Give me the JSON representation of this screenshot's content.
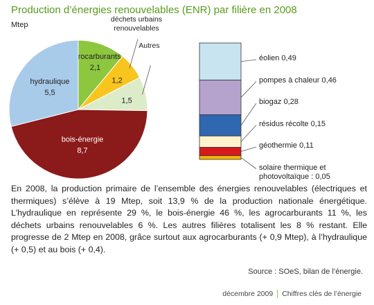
{
  "chart_data": [
    {
      "type": "pie",
      "title": "Production d’énergies renouvelables (ENR) par filière en 2008",
      "unit": "Mtep",
      "categories": [
        "agrocarburants",
        "déchets urbains renouvelables",
        "Autres",
        "bois-énergie",
        "hydraulique"
      ],
      "values": [
        2.1,
        1.2,
        1.5,
        8.7,
        5.5
      ],
      "value_labels": [
        "2,1",
        "1,2",
        "1,5",
        "8,7",
        "5,5"
      ],
      "colors": [
        "#8dc63f",
        "#f7c51e",
        "#dcecc9",
        "#8b1a1a",
        "#a9cbea"
      ]
    },
    {
      "type": "stacked-bar",
      "categories": [
        "éolien",
        "pompes à chaleur",
        "biogaz",
        "résidus récolte",
        "géothermie",
        "solaire thermique et photovoltaïque :"
      ],
      "values": [
        0.49,
        0.46,
        0.28,
        0.15,
        0.11,
        0.05
      ],
      "value_labels": [
        "0,49",
        "0,46",
        "0,28",
        "0,15",
        "0,11",
        "0,05"
      ],
      "colors": [
        "#c8e4f0",
        "#b5a2cd",
        "#2f67b1",
        "#fdf3cc",
        "#d7191c",
        "#f4b400"
      ]
    }
  ],
  "text": {
    "paragraph": "En 2008, la production primaire de l’ensemble des énergies renouvelables (électriques et thermiques) s’élève à 19 Mtep, soit 13,9 % de la production nationale énergétique. L’hydraulique en représente 29 %, le bois-énergie 46 %, les agrocarburants 11 %, les déchets urbains renouvelables 6 %. Les autres filières totalisent les 8 % restant. Elle progresse de 2 Mtep en 2008, grâce surtout aux agrocarburants (+ 0,9 Mtep), à l’hydraulique (+ 0,5) et au bois (+ 0,4).",
    "source": "Source : SOeS, bilan de l’énergie."
  },
  "footer": {
    "date": "décembre 2009",
    "publication": "Chiffres clés de l’énergie"
  }
}
